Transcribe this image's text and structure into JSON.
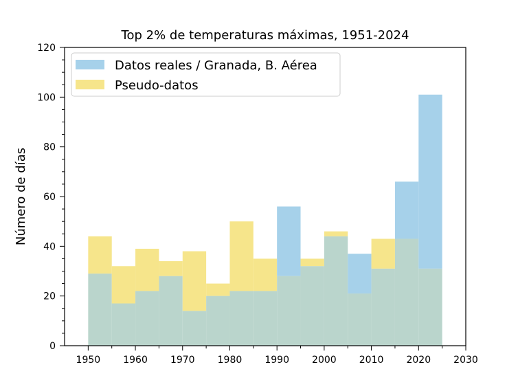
{
  "chart_data": {
    "type": "bar",
    "title": "Top 2% de temperaturas máximas, 1951-2024",
    "xlabel": "",
    "ylabel": "Número de días",
    "xlim": [
      1945,
      2030
    ],
    "ylim": [
      0,
      120
    ],
    "xticks": [
      1950,
      1960,
      1970,
      1980,
      1990,
      2000,
      2010,
      2020,
      2030
    ],
    "yticks": [
      0,
      20,
      40,
      60,
      80,
      100,
      120
    ],
    "bin_edges": [
      1950,
      1955,
      1960,
      1965,
      1970,
      1975,
      1980,
      1985,
      1990,
      1995,
      2000,
      2005,
      2010,
      2015,
      2020,
      2025
    ],
    "series": [
      {
        "name": "Datos reales / Granada, B. Aérea",
        "color": "#a6d1ea",
        "values": [
          29,
          17,
          22,
          28,
          14,
          20,
          22,
          22,
          56,
          32,
          44,
          37,
          31,
          66,
          101
        ]
      },
      {
        "name": "Pseudo-datos",
        "color": "#f6e58b",
        "values": [
          44,
          32,
          39,
          34,
          38,
          25,
          50,
          35,
          28,
          35,
          46,
          21,
          43,
          43,
          31
        ]
      }
    ],
    "overlap_color": "#bad5cc",
    "legend_position": "top-left",
    "grid": false
  }
}
